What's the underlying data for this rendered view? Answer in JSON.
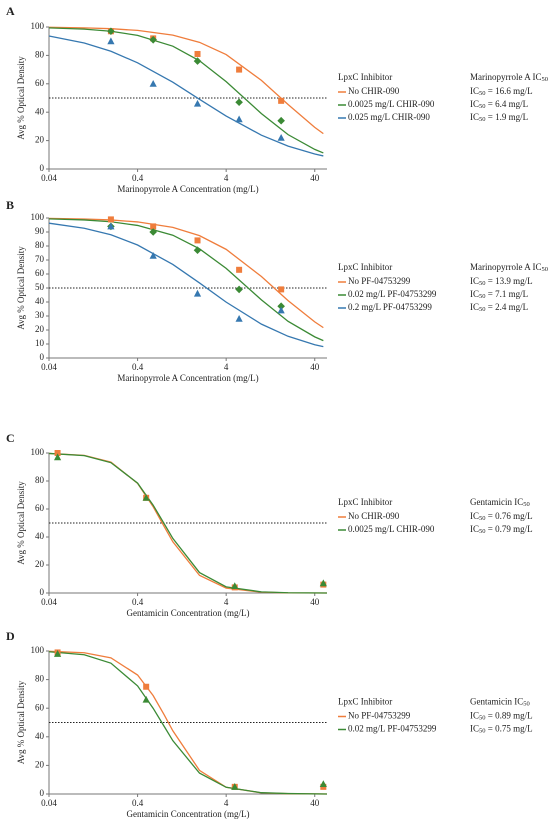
{
  "chart_data": [
    {
      "type": "scatter",
      "panel": "A",
      "x_label": "Marinopyrrole A Concentration (mg/L)",
      "y_label": "Avg % Optical Density",
      "xscale": "log",
      "xlim": [
        0.04,
        55
      ],
      "xticks": [
        0.04,
        0.4,
        4,
        40
      ],
      "ylim": [
        0,
        100
      ],
      "yticks": [
        0,
        20,
        40,
        60,
        80,
        100
      ],
      "reference_line": 50,
      "legend_title": "LpxC Inhibitor",
      "ic50_title": [
        "Marinopyrrole A IC",
        "50"
      ],
      "series": [
        {
          "name": "No CHIR-090",
          "color": "#ef7d3c",
          "marker": "square",
          "x": [
            0.2,
            0.6,
            1.9,
            5.6,
            16.7
          ],
          "values": [
            97,
            92,
            81,
            70,
            48
          ],
          "fit_x": [
            0.04,
            0.1,
            0.2,
            0.4,
            1,
            2,
            4,
            10,
            20,
            40,
            50
          ],
          "fit_values": [
            99.8,
            99.4,
            98.8,
            97.6,
            94.3,
            89.2,
            80.6,
            62.4,
            45.4,
            29.3,
            24.9
          ],
          "ic50_label": [
            "IC",
            "50",
            " = 16.6 mg/L"
          ]
        },
        {
          "name": "0.0025 mg/L CHIR-090",
          "color": "#3b8a35",
          "marker": "diamond",
          "x": [
            0.2,
            0.6,
            1.9,
            5.6,
            16.7
          ],
          "values": [
            97,
            91,
            76,
            47,
            34
          ],
          "fit_x": [
            0.04,
            0.1,
            0.2,
            0.4,
            1,
            2,
            4,
            10,
            20,
            40,
            50
          ],
          "fit_values": [
            99.4,
            98.5,
            97.0,
            94.1,
            86.5,
            76.2,
            61.5,
            39.0,
            24.2,
            13.8,
            11.3
          ],
          "ic50_label": [
            "IC",
            "50",
            " = 6.4 mg/L"
          ]
        },
        {
          "name": "0.025 mg/L CHIR-090",
          "color": "#3678b0",
          "marker": "triangle",
          "x": [
            0.2,
            0.6,
            1.9,
            5.6,
            16.7
          ],
          "values": [
            90,
            60,
            46,
            35,
            22
          ],
          "fit_x": [
            0.04,
            0.1,
            0.2,
            0.4,
            1,
            2,
            4,
            10,
            20,
            40,
            50
          ],
          "fit_values": [
            93.7,
            88.7,
            82.9,
            74.8,
            61.1,
            49.1,
            37.3,
            23.8,
            16.1,
            10.6,
            9.2
          ],
          "ic50_label": [
            "IC",
            "50",
            " = 1.9 mg/L"
          ]
        }
      ]
    },
    {
      "type": "scatter",
      "panel": "B",
      "x_label": "Marinopyrrole A Concentration (mg/L)",
      "y_label": "Avg % Optical Density",
      "xscale": "log",
      "xlim": [
        0.04,
        55
      ],
      "xticks": [
        0.04,
        0.4,
        4,
        40
      ],
      "ylim": [
        0,
        100
      ],
      "yticks": [
        0,
        10,
        20,
        30,
        40,
        50,
        60,
        70,
        80,
        90,
        100
      ],
      "reference_line": 50,
      "legend_title": "LpxC Inhibitor",
      "ic50_title": [
        "Marinopyrrole A IC",
        "50"
      ],
      "series": [
        {
          "name": "No PF-04753299",
          "color": "#ef7d3c",
          "marker": "square",
          "x": [
            0.2,
            0.6,
            1.9,
            5.6,
            16.7
          ],
          "values": [
            99,
            94,
            84,
            63,
            49
          ],
          "fit_x": [
            0.04,
            0.1,
            0.2,
            0.4,
            1,
            2,
            4,
            10,
            20,
            40,
            50
          ],
          "fit_values": [
            99.7,
            99.3,
            98.6,
            97.2,
            93.3,
            87.4,
            77.6,
            58.2,
            41.0,
            25.8,
            21.7
          ],
          "ic50_label": [
            "IC",
            "50",
            " = 13.9 mg/L"
          ]
        },
        {
          "name": "0.02 mg/L PF-04753299",
          "color": "#3b8a35",
          "marker": "diamond",
          "x": [
            0.2,
            0.6,
            1.9,
            5.6,
            16.7
          ],
          "values": [
            94,
            90,
            77,
            49,
            37
          ],
          "fit_x": [
            0.04,
            0.1,
            0.2,
            0.4,
            1,
            2,
            4,
            10,
            20,
            40,
            50
          ],
          "fit_values": [
            99.4,
            98.6,
            97.3,
            94.7,
            87.7,
            78.0,
            64.0,
            41.5,
            26.2,
            15.1,
            12.4
          ],
          "ic50_label": [
            "IC",
            "50",
            " = 7.1 mg/L"
          ]
        },
        {
          "name": "0.2 mg/L PF-04753299",
          "color": "#3678b0",
          "marker": "triangle",
          "x": [
            0.2,
            0.6,
            1.9,
            5.6,
            16.7
          ],
          "values": [
            94,
            73,
            46,
            28,
            34
          ],
          "fit_x": [
            0.04,
            0.1,
            0.2,
            0.4,
            1,
            2,
            4,
            10,
            20,
            40,
            50
          ],
          "fit_values": [
            96.3,
            92.7,
            88.0,
            80.7,
            66.8,
            53.6,
            39.9,
            24.2,
            15.5,
            9.5,
            8.1
          ],
          "ic50_label": [
            "IC",
            "50",
            " = 2.4 mg/L"
          ]
        }
      ]
    },
    {
      "type": "scatter",
      "panel": "C",
      "x_label": "Gentamicin Concentration (mg/L)",
      "y_label": "Avg % Optical Density",
      "xscale": "log",
      "xlim": [
        0.04,
        55
      ],
      "xticks": [
        0.04,
        0.4,
        4,
        40
      ],
      "ylim": [
        0,
        100
      ],
      "yticks": [
        0,
        20,
        40,
        60,
        80,
        100
      ],
      "reference_line": 50,
      "legend_title": "LpxC Inhibitor",
      "ic50_title": [
        "Gentamicin IC",
        "50"
      ],
      "series": [
        {
          "name": "No CHIR-090",
          "color": "#ef7d3c",
          "marker": "square",
          "x": [
            0.05,
            0.5,
            5,
            50
          ],
          "values": [
            100,
            68,
            4,
            6
          ],
          "fit_x": [
            0.04,
            0.1,
            0.2,
            0.4,
            0.6,
            0.8,
            1,
            2,
            4,
            10,
            20,
            55
          ],
          "fit_values": [
            99.7,
            98.3,
            93.5,
            78.3,
            61.6,
            47.4,
            36.6,
            12.6,
            3.5,
            0.6,
            0.1,
            0
          ],
          "ic50_label": [
            "IC",
            "50",
            " = 0.76 mg/L"
          ]
        },
        {
          "name": "0.0025 mg/L CHIR-090",
          "color": "#3b8a35",
          "marker": "triangle",
          "x": [
            0.05,
            0.5,
            5,
            50
          ],
          "values": [
            97,
            68,
            5,
            7
          ],
          "fit_x": [
            0.04,
            0.1,
            0.2,
            0.4,
            0.6,
            0.8,
            1,
            2,
            4,
            10,
            20,
            55
          ],
          "fit_values": [
            99.7,
            98.1,
            93.1,
            78.5,
            62.7,
            49.4,
            39.0,
            14.6,
            4.4,
            0.8,
            0.2,
            0
          ],
          "ic50_label": [
            "IC",
            "50",
            " = 0.79 mg/L"
          ]
        }
      ]
    },
    {
      "type": "scatter",
      "panel": "D",
      "x_label": "Gentamicin Concentration (mg/L)",
      "y_label": "Avg % Optical Density",
      "xscale": "log",
      "xlim": [
        0.04,
        55
      ],
      "xticks": [
        0.04,
        0.4,
        4,
        40
      ],
      "ylim": [
        0,
        100
      ],
      "yticks": [
        0,
        20,
        40,
        60,
        80,
        100
      ],
      "reference_line": 50,
      "legend_title": "LpxC Inhibitor",
      "ic50_title": [
        "Gentamicin IC",
        "50"
      ],
      "series": [
        {
          "name": "No PF-04753299",
          "color": "#ef7d3c",
          "marker": "square",
          "x": [
            0.05,
            0.5,
            5,
            50
          ],
          "values": [
            99,
            75,
            5,
            5
          ],
          "fit_x": [
            0.04,
            0.1,
            0.2,
            0.4,
            0.6,
            0.8,
            1,
            2,
            4,
            10,
            20,
            55
          ],
          "fit_values": [
            99.8,
            98.8,
            95.2,
            83.2,
            68.8,
            55.3,
            44.2,
            16.5,
            4.7,
            0.8,
            0.2,
            0
          ],
          "ic50_label": [
            "IC",
            "50",
            " = 0.89 mg/L"
          ]
        },
        {
          "name": "0.02 mg/L PF-04753299",
          "color": "#3b8a35",
          "marker": "triangle",
          "x": [
            0.05,
            0.5,
            5,
            50
          ],
          "values": [
            98,
            66,
            5,
            7
          ],
          "fit_x": [
            0.04,
            0.1,
            0.2,
            0.4,
            0.6,
            0.8,
            1,
            2,
            4,
            10,
            20,
            55
          ],
          "fit_values": [
            99.5,
            97.4,
            91.5,
            75.6,
            59.9,
            47.2,
            37.3,
            14.6,
            4.7,
            0.9,
            0.3,
            0
          ],
          "ic50_label": [
            "IC",
            "50",
            " = 0.75 mg/L"
          ]
        }
      ]
    }
  ]
}
